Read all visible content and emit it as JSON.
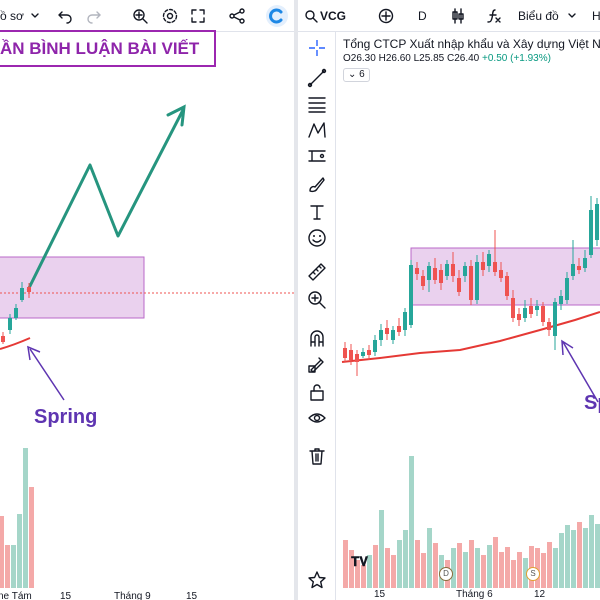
{
  "left": {
    "toolbar": {
      "profile_fragment": "ồ sơ"
    },
    "banner_title": "ẦN BÌNH LUẬN BÀI VIẾT",
    "annotation": "Spring",
    "x_axis": [
      "ne Tám",
      "15",
      "Tháng 9",
      "15"
    ]
  },
  "right": {
    "toolbar": {
      "symbol": "VCG",
      "interval": "D",
      "chart_menu": "Biểu đồ",
      "fragment": "H"
    },
    "legend": {
      "title": "Tổng CTCP Xuất nhập khẩu và Xây dựng Việt N",
      "open": "O26.30",
      "high": "H26.60",
      "low": "L25.85",
      "close": "C26.40",
      "change": "+0.50 (+1.93%)",
      "indicator_count": "6"
    },
    "annotation": "Sp",
    "x_axis": [
      "15",
      "Tháng 6",
      "12"
    ],
    "markers": {
      "dividend": "D",
      "split": "S"
    }
  },
  "colors": {
    "up": "#26a69a",
    "down": "#ef5350",
    "zone_fill": "#e1bee7",
    "zone_border": "#ba68c8",
    "arrow": "#26957f",
    "ma": "#e53935",
    "annotation": "#5e35b1"
  },
  "icons": {
    "left_toolbar": [
      "profile-icon",
      "chevron-down-icon",
      "undo-icon",
      "redo-icon",
      "magnifier-icon",
      "gear-icon",
      "fullscreen-icon",
      "share-icon",
      "logo-icon"
    ],
    "right_toolbar": [
      "search-icon",
      "add-symbol-icon",
      "candles-icon",
      "formula-icon",
      "chevron-down-icon"
    ],
    "sidebar": [
      "crosshair-icon",
      "trendline-icon",
      "fib-icon",
      "pattern-icon",
      "projection-icon",
      "brush-icon",
      "text-icon",
      "emoji-icon",
      "ruler-icon",
      "zoom-in-icon",
      "magnet-icon",
      "lock-draw-icon",
      "lock-icon",
      "eye-icon",
      "trash-icon",
      "star-icon"
    ]
  }
}
